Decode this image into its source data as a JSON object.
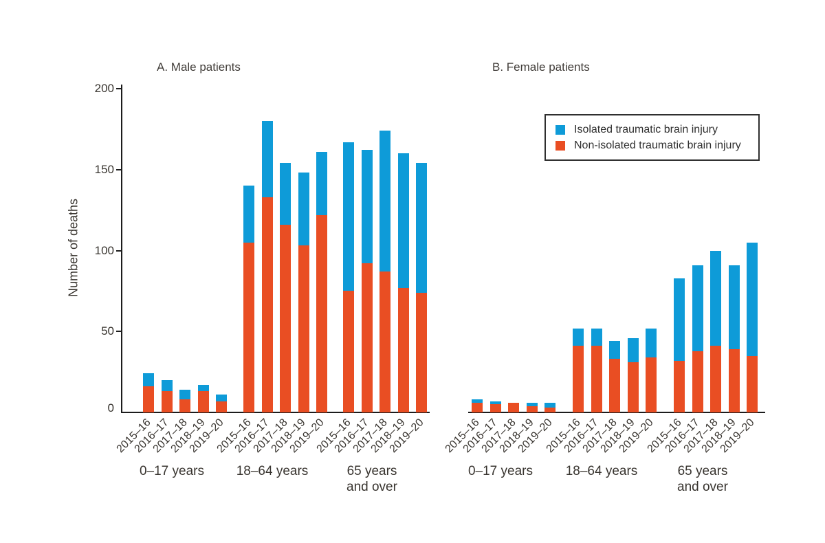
{
  "figure_background": "#ffffff",
  "colors": {
    "isolated_blue": "#0e9bd8",
    "non_isolated_red": "#e94e23",
    "axis_black": "#1c1c1c",
    "text_gray": "#38342f"
  },
  "legend": {
    "items": [
      {
        "key": "isolated",
        "label": "Isolated traumatic brain injury",
        "color": "#0e9bd8"
      },
      {
        "key": "non_isolated",
        "label": "Non-isolated traumatic brain injury",
        "color": "#e94e23"
      }
    ]
  },
  "chart_data": {
    "type": "bar",
    "stacked": true,
    "ylabel": "Number of deaths",
    "ylim": [
      0,
      200
    ],
    "yticks": [
      0,
      50,
      100,
      150,
      200
    ],
    "grid": false,
    "legend_position": "upper right of right panel",
    "years": [
      "2015–16",
      "2016–17",
      "2017–18",
      "2018–19",
      "2019–20"
    ],
    "age_groups": [
      "0–17 years",
      "18–64 years",
      "65 years and over"
    ],
    "series_names": [
      "Non-isolated traumatic brain injury",
      "Isolated traumatic brain injury"
    ],
    "panels": [
      {
        "label": "A. Male patients",
        "groups": [
          {
            "age_label_lines": [
              "0–17 years"
            ],
            "non_isolated": [
              16,
              13,
              8,
              13,
              7
            ],
            "isolated": [
              8,
              7,
              6,
              4,
              4
            ],
            "totals": [
              24,
              20,
              14,
              17,
              11
            ]
          },
          {
            "age_label_lines": [
              "18–64 years"
            ],
            "non_isolated": [
              105,
              133,
              116,
              103,
              122
            ],
            "isolated": [
              35,
              47,
              38,
              45,
              39
            ],
            "totals": [
              140,
              180,
              154,
              148,
              161
            ]
          },
          {
            "age_label_lines": [
              "65 years",
              "and over"
            ],
            "non_isolated": [
              75,
              92,
              87,
              77,
              74
            ],
            "isolated": [
              92,
              70,
              87,
              83,
              80
            ],
            "totals": [
              167,
              162,
              174,
              160,
              154
            ]
          }
        ]
      },
      {
        "label": "B. Female patients",
        "groups": [
          {
            "age_label_lines": [
              "0–17 years"
            ],
            "non_isolated": [
              6,
              5,
              6,
              4,
              3
            ],
            "isolated": [
              2,
              2,
              0,
              2,
              3
            ],
            "totals": [
              8,
              7,
              6,
              6,
              6
            ]
          },
          {
            "age_label_lines": [
              "18–64 years"
            ],
            "non_isolated": [
              41,
              41,
              33,
              31,
              34
            ],
            "isolated": [
              11,
              11,
              11,
              15,
              18
            ],
            "totals": [
              52,
              52,
              44,
              46,
              52
            ]
          },
          {
            "age_label_lines": [
              "65 years",
              "and over"
            ],
            "non_isolated": [
              32,
              38,
              41,
              39,
              35
            ],
            "isolated": [
              51,
              53,
              59,
              52,
              70
            ],
            "totals": [
              83,
              91,
              100,
              91,
              105
            ]
          }
        ]
      }
    ]
  }
}
